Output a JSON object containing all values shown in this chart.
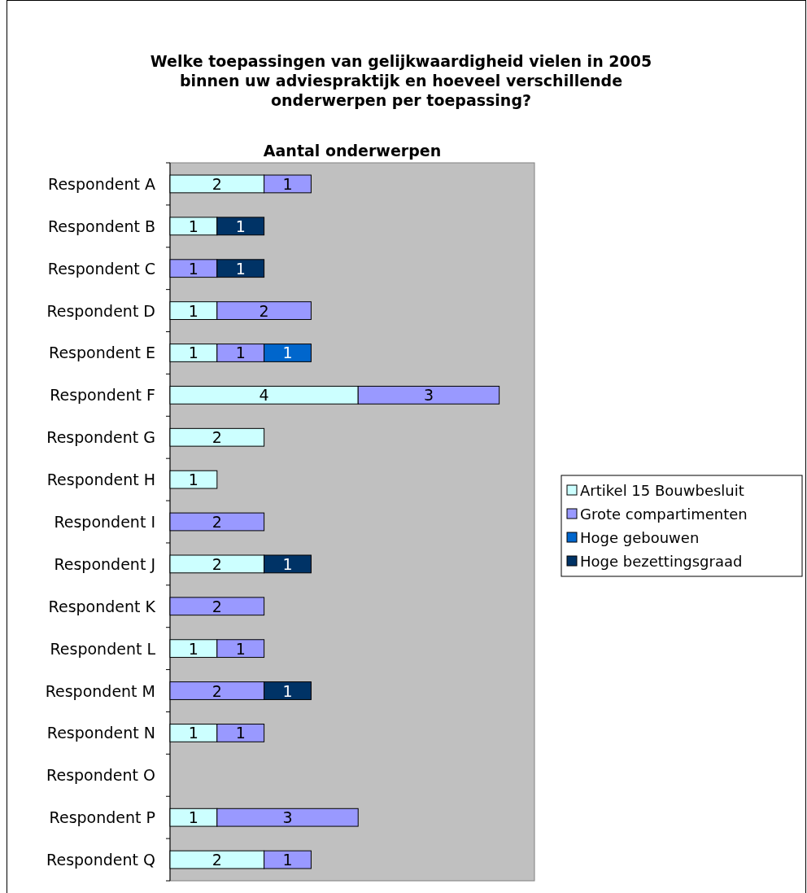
{
  "chart_data": {
    "type": "bar",
    "orientation": "horizontal",
    "stacked": true,
    "title": "Welke toepassingen van gelijkwaardigheid vielen in 2005\nbinnen uw adviespraktijk en hoeveel verschillende\nonderwerpen per toepassing?",
    "subtitle": "Aantal onderwerpen",
    "categories": [
      "Respondent A",
      "Respondent B",
      "Respondent C",
      "Respondent D",
      "Respondent E",
      "Respondent F",
      "Respondent G",
      "Respondent H",
      "Respondent I",
      "Respondent J",
      "Respondent K",
      "Respondent L",
      "Respondent M",
      "Respondent N",
      "Respondent O",
      "Respondent P",
      "Respondent Q"
    ],
    "series": [
      {
        "name": "Artikel 15 Bouwbesluit",
        "color": "#ccffff",
        "values": [
          2,
          1,
          null,
          1,
          1,
          4,
          2,
          1,
          null,
          2,
          null,
          1,
          null,
          1,
          null,
          1,
          2
        ]
      },
      {
        "name": "Grote compartimenten",
        "color": "#9999ff",
        "values": [
          1,
          null,
          1,
          2,
          1,
          3,
          null,
          null,
          2,
          null,
          2,
          1,
          2,
          1,
          null,
          3,
          1
        ]
      },
      {
        "name": "Hoge gebouwen",
        "color": "#0066cc",
        "values": [
          null,
          null,
          null,
          null,
          1,
          null,
          null,
          null,
          null,
          null,
          null,
          null,
          null,
          null,
          null,
          null,
          null
        ]
      },
      {
        "name": "Hoge bezettingsgraad",
        "color": "#003366",
        "values": [
          null,
          1,
          1,
          null,
          null,
          null,
          null,
          null,
          null,
          1,
          null,
          null,
          1,
          null,
          null,
          null,
          null
        ]
      }
    ],
    "xlim": [
      0,
      7.75
    ],
    "data_labels": true,
    "legend": "right",
    "grid": false,
    "tick_labels": "y"
  }
}
